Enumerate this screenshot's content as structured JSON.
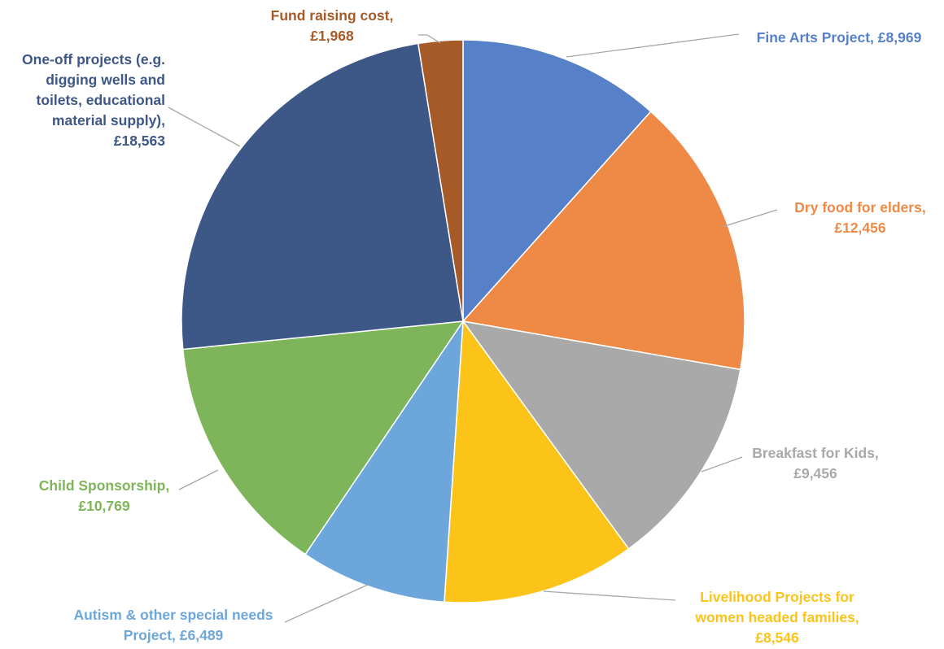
{
  "chart_data": {
    "type": "pie",
    "title": "",
    "start_angle_deg": 0,
    "direction": "clockwise",
    "legend": "none",
    "slices": [
      {
        "name": "Fine Arts Project",
        "label": [
          "Fine Arts Project, £8,969"
        ],
        "value": 8969,
        "color": "#5681C9"
      },
      {
        "name": "Dry food for elders",
        "label": [
          "Dry food for elders,",
          "£12,456"
        ],
        "value": 12456,
        "color": "#EE8A45"
      },
      {
        "name": "Breakfast for Kids",
        "label": [
          "Breakfast for Kids,",
          "£9,456"
        ],
        "value": 9456,
        "color": "#A9A9A9"
      },
      {
        "name": "Livelihood Projects for women headed families",
        "label": [
          "Livelihood Projects for",
          "women headed families,",
          "£8,546"
        ],
        "value": 8546,
        "color": "#FCC419"
      },
      {
        "name": "Autism & other special needs Project",
        "label": [
          "Autism & other special needs",
          "Project, £6,489"
        ],
        "value": 6489,
        "color": "#6CA6DB"
      },
      {
        "name": "Child Sponsorship",
        "label": [
          "Child Sponsorship,",
          "£10,769"
        ],
        "value": 10769,
        "color": "#7FB55A"
      },
      {
        "name": "One-off projects (e.g. digging wells and toilets, educational material supply)",
        "label": [
          "One-off projects (e.g.",
          "digging wells and",
          "toilets, educational",
          "material supply),",
          "£18,563"
        ],
        "value": 18563,
        "color": "#3D5786"
      },
      {
        "name": "Fund raising cost",
        "label": [
          "Fund raising cost,",
          "£1,968"
        ],
        "value": 1968,
        "color": "#A65A28"
      }
    ]
  }
}
